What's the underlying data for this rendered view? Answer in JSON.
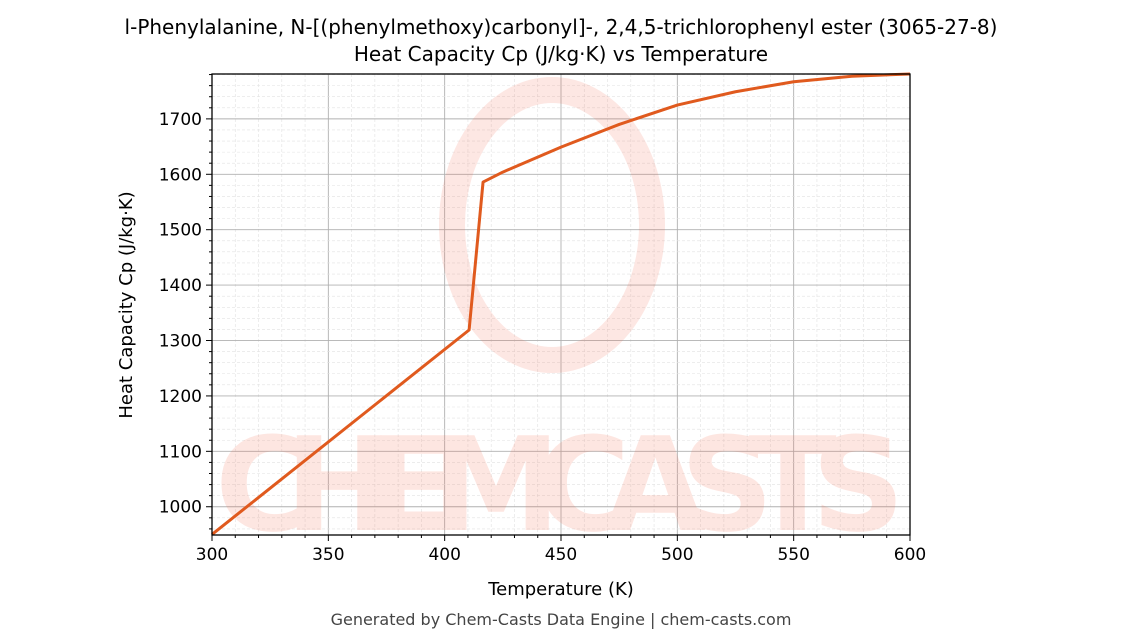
{
  "chart_data": {
    "type": "line",
    "title": "l-Phenylalanine, N-[(phenylmethoxy)carbonyl]-, 2,4,5-trichlorophenyl ester (3065-27-8)",
    "subtitle": "Heat Capacity Cp (J/kg·K) vs Temperature",
    "xlabel": "Temperature (K)",
    "ylabel": "Heat Capacity Cp (J/kg·K)",
    "xlim": [
      300,
      600
    ],
    "ylim": [
      949,
      1781
    ],
    "xticks": [
      300,
      350,
      400,
      450,
      500,
      550,
      600
    ],
    "yticks": [
      1000,
      1100,
      1200,
      1300,
      1400,
      1500,
      1600,
      1700
    ],
    "grid": true,
    "series": [
      {
        "color": "#e05a1e",
        "x": [
          300,
          410.5,
          416.5,
          425,
          450,
          475,
          500,
          525,
          550,
          575,
          600
        ],
        "y": [
          950,
          1319,
          1586,
          1604,
          1649,
          1690,
          1725,
          1749,
          1767,
          1777,
          1781
        ]
      }
    ],
    "footer": "Generated by Chem-Casts Data Engine | chem-casts.com",
    "watermark": "CHEMCASTS"
  }
}
